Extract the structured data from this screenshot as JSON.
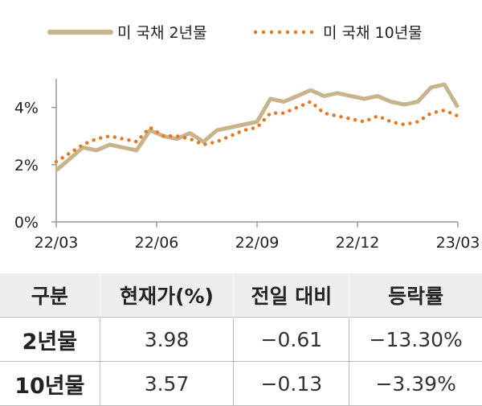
{
  "chart_data": {
    "type": "line",
    "x_ticks": [
      "22/03",
      "22/06",
      "22/09",
      "22/12",
      "23/03"
    ],
    "y_ticks": [
      "0%",
      "2%",
      "4%"
    ],
    "ylim": [
      0,
      5
    ],
    "grid": false,
    "legend_position": "top",
    "series": [
      {
        "name": "미 국채 2년물",
        "color": "#c8b48c",
        "style": "solid",
        "values": [
          1.8,
          2.2,
          2.6,
          2.5,
          2.7,
          2.6,
          2.5,
          3.2,
          3.0,
          2.9,
          3.1,
          2.8,
          3.2,
          3.3,
          3.4,
          3.5,
          4.3,
          4.2,
          4.4,
          4.6,
          4.4,
          4.5,
          4.4,
          4.3,
          4.4,
          4.2,
          4.1,
          4.2,
          4.7,
          4.8,
          4.0
        ]
      },
      {
        "name": "미 국채 10년물",
        "color": "#e87722",
        "style": "dotted",
        "values": [
          2.1,
          2.4,
          2.7,
          2.9,
          3.0,
          2.9,
          2.8,
          3.3,
          3.0,
          3.0,
          2.9,
          2.7,
          2.8,
          3.0,
          3.2,
          3.3,
          3.8,
          3.8,
          4.0,
          4.2,
          3.8,
          3.7,
          3.6,
          3.5,
          3.7,
          3.5,
          3.4,
          3.5,
          3.8,
          3.9,
          3.7
        ]
      }
    ]
  },
  "table": {
    "headers": [
      "구분",
      "현재가(%)",
      "전일 대비",
      "등락률"
    ],
    "rows": [
      [
        "2년물",
        "3.98",
        "−0.61",
        "−13.30%"
      ],
      [
        "10년물",
        "3.57",
        "−0.13",
        "−3.39%"
      ]
    ]
  }
}
